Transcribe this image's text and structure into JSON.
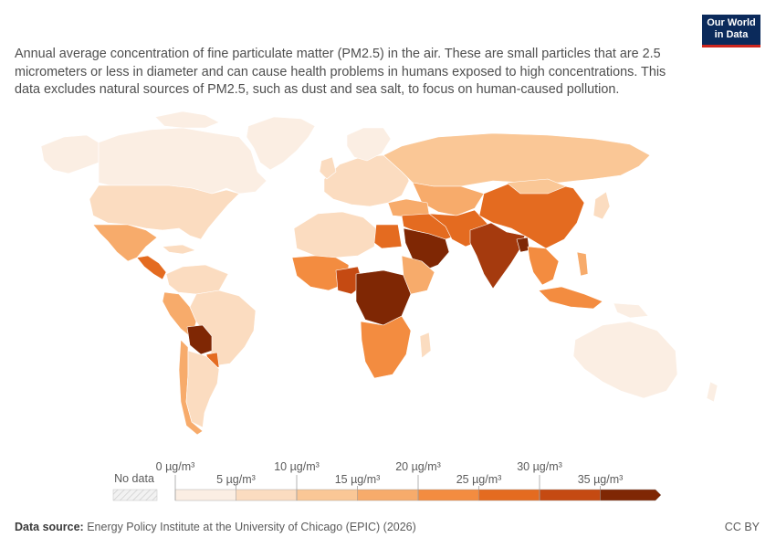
{
  "subtitle": "Annual average concentration of fine particulate matter (PM2.5) in the air. These are small particles that are 2.5 micrometers or less in diameter and can cause health problems in humans exposed to high concentrations. This data excludes natural sources of PM2.5, such as dust and sea salt, to focus on human-caused pollution.",
  "logo": {
    "line1": "Our World",
    "line2": "in Data"
  },
  "legend": {
    "no_data_label": "No data",
    "top_labels": [
      "0 µg/m³",
      "10 µg/m³",
      "20 µg/m³",
      "30 µg/m³"
    ],
    "bottom_labels": [
      "5 µg/m³",
      "15 µg/m³",
      "25 µg/m³",
      "35 µg/m³"
    ],
    "bins": [
      {
        "from": 0,
        "to": 5,
        "color": "#fbeee3"
      },
      {
        "from": 5,
        "to": 10,
        "color": "#fbdcc0"
      },
      {
        "from": 10,
        "to": 15,
        "color": "#fac796"
      },
      {
        "from": 15,
        "to": 20,
        "color": "#f7ab6b"
      },
      {
        "from": 20,
        "to": 25,
        "color": "#f38c40"
      },
      {
        "from": 25,
        "to": 30,
        "color": "#e46b20"
      },
      {
        "from": 30,
        "to": 35,
        "color": "#c54a12"
      },
      {
        "from": 35,
        "to": null,
        "color": "#7f2704"
      }
    ]
  },
  "source": {
    "label": "Data source:",
    "text": "Energy Policy Institute at the University of Chicago (EPIC) (2026)"
  },
  "license": "CC BY"
}
